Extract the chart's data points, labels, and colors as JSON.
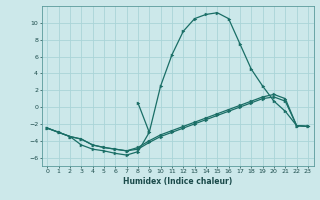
{
  "xlabel": "Humidex (Indice chaleur)",
  "bg_color": "#cce8ea",
  "grid_color": "#aad4d8",
  "line_color": "#1a6e66",
  "xlim": [
    -0.5,
    23.5
  ],
  "ylim": [
    -7,
    12
  ],
  "yticks": [
    -6,
    -4,
    -2,
    0,
    2,
    4,
    6,
    8,
    10
  ],
  "xticks": [
    0,
    1,
    2,
    3,
    4,
    5,
    6,
    7,
    8,
    9,
    10,
    11,
    12,
    13,
    14,
    15,
    16,
    17,
    18,
    19,
    20,
    21,
    22,
    23
  ],
  "curve1_x": [
    0,
    1,
    2,
    3,
    4,
    5,
    6,
    7,
    8,
    9,
    10,
    11,
    12,
    13,
    14,
    15,
    16,
    17,
    18,
    19,
    20,
    21,
    22,
    23
  ],
  "curve1_y": [
    -2.5,
    -3.0,
    -3.5,
    -4.5,
    -5.0,
    -5.2,
    -5.5,
    -5.7,
    -5.3,
    -3.0,
    2.5,
    6.2,
    9.0,
    10.5,
    11.0,
    11.2,
    10.5,
    7.5,
    4.5,
    2.5,
    0.7,
    -0.5,
    -2.2,
    -2.3
  ],
  "curve2_x": [
    0,
    1,
    2,
    3,
    4,
    5,
    6,
    7,
    8,
    9,
    10,
    11,
    12,
    13,
    14,
    15,
    16,
    17,
    18,
    19,
    20,
    21,
    22,
    23
  ],
  "curve2_y": [
    -2.5,
    -3.0,
    -3.5,
    -3.8,
    -4.5,
    -4.8,
    -5.0,
    -5.2,
    -5.0,
    -4.2,
    -3.5,
    -3.0,
    -2.5,
    -2.0,
    -1.5,
    -1.0,
    -0.5,
    0.0,
    0.5,
    1.0,
    1.2,
    0.7,
    -2.2,
    -2.3
  ],
  "curve3_x": [
    0,
    1,
    2,
    3,
    4,
    5,
    6,
    7,
    8,
    9,
    10,
    11,
    12,
    13,
    14,
    15,
    16,
    17,
    18,
    19,
    20,
    21,
    22,
    23
  ],
  "curve3_y": [
    -2.5,
    -3.0,
    -3.5,
    -3.8,
    -4.5,
    -4.8,
    -5.0,
    -5.2,
    -4.8,
    -4.0,
    -3.3,
    -2.8,
    -2.3,
    -1.8,
    -1.3,
    -0.8,
    -0.3,
    0.2,
    0.7,
    1.2,
    1.5,
    1.0,
    -2.2,
    -2.3
  ],
  "curve4_x": [
    8,
    9
  ],
  "curve4_y": [
    0.5,
    -3.0
  ]
}
